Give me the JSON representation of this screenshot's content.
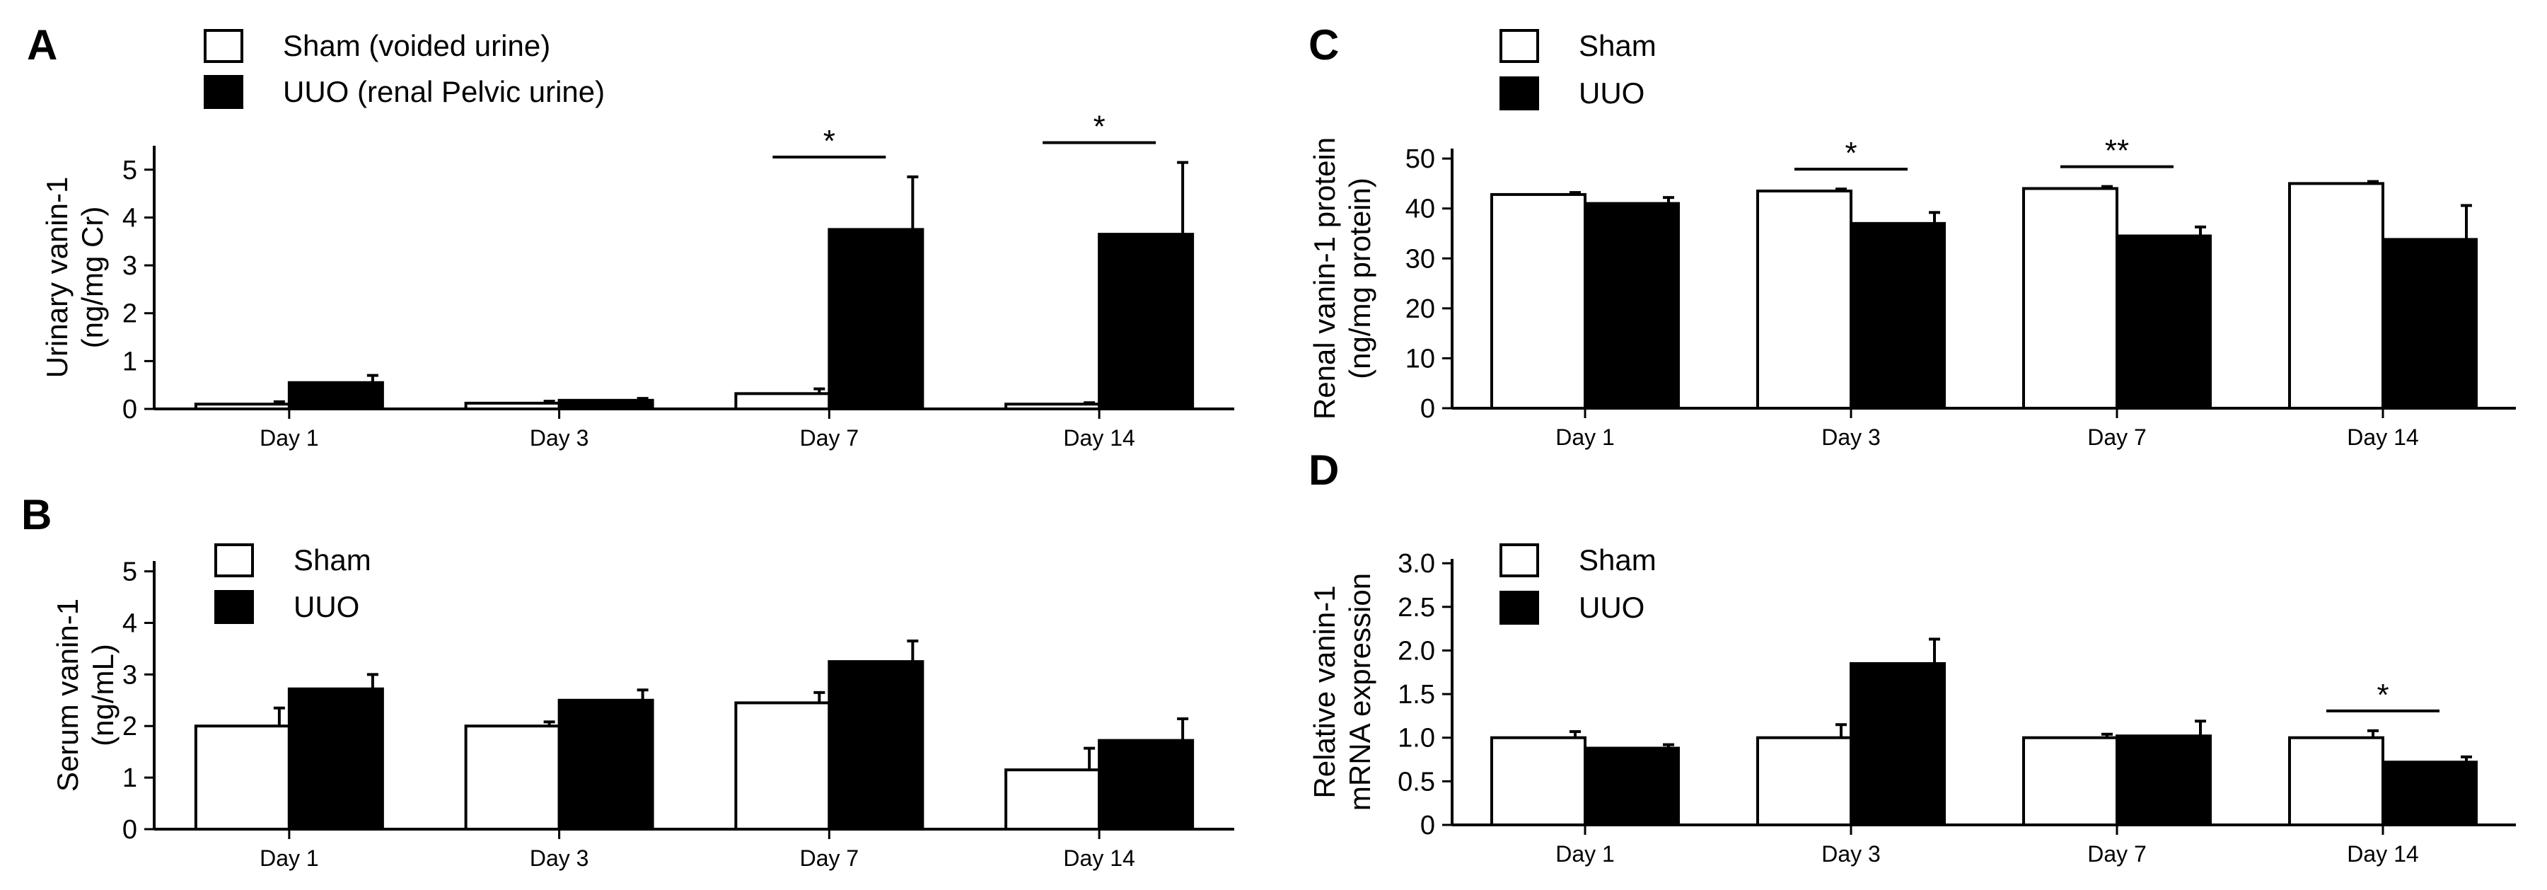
{
  "colors": {
    "sham": "#ffffff",
    "uuo": "#000000",
    "stroke": "#000000"
  },
  "chart_data": [
    {
      "panel": "A",
      "type": "bar",
      "ylabel_lines": [
        "Urinary vanin-1",
        "(ng/mg Cr)"
      ],
      "xlabel": "",
      "categories": [
        "Day 1",
        "Day 3",
        "Day 7",
        "Day 14"
      ],
      "yticks": [
        0,
        1,
        2,
        3,
        4,
        5
      ],
      "ylim": [
        0,
        5.5
      ],
      "legend": [
        "Sham (voided urine)",
        "UUO (renal Pelvic urine)"
      ],
      "series": [
        {
          "name": "Sham (voided urine)",
          "values": [
            0.1,
            0.12,
            0.32,
            0.1
          ],
          "errors": [
            0.05,
            0.04,
            0.1,
            0.03
          ]
        },
        {
          "name": "UUO (renal Pelvic urine)",
          "values": [
            0.55,
            0.18,
            3.75,
            3.65
          ],
          "errors": [
            0.15,
            0.04,
            1.1,
            1.5
          ]
        }
      ],
      "significance": [
        {
          "category": "Day 7",
          "label": "*"
        },
        {
          "category": "Day 14",
          "label": "*"
        }
      ]
    },
    {
      "panel": "B",
      "type": "bar",
      "ylabel_lines": [
        "Serum vanin-1",
        "(ng/mL)"
      ],
      "xlabel": "",
      "categories": [
        "Day 1",
        "Day 3",
        "Day 7",
        "Day 14"
      ],
      "yticks": [
        0,
        1,
        2,
        3,
        4,
        5
      ],
      "ylim": [
        0,
        5.2
      ],
      "legend": [
        "Sham",
        "UUO"
      ],
      "series": [
        {
          "name": "Sham",
          "values": [
            2.0,
            2.0,
            2.45,
            1.15
          ],
          "errors": [
            0.35,
            0.08,
            0.2,
            0.42
          ]
        },
        {
          "name": "UUO",
          "values": [
            2.72,
            2.5,
            3.25,
            1.72
          ],
          "errors": [
            0.28,
            0.2,
            0.4,
            0.42
          ]
        }
      ],
      "significance": []
    },
    {
      "panel": "C",
      "type": "bar",
      "ylabel_lines": [
        "Renal vanin-1 protein",
        "(ng/mg protein)"
      ],
      "xlabel": "",
      "categories": [
        "Day 1",
        "Day 3",
        "Day 7",
        "Day 14"
      ],
      "yticks": [
        0,
        10,
        20,
        30,
        40,
        50
      ],
      "ylim": [
        0,
        52
      ],
      "legend": [
        "Sham",
        "UUO"
      ],
      "series": [
        {
          "name": "Sham",
          "values": [
            42.8,
            43.5,
            44.0,
            45.0
          ],
          "errors": [
            0.4,
            0.4,
            0.4,
            0.4
          ]
        },
        {
          "name": "UUO",
          "values": [
            41.0,
            37.0,
            34.5,
            33.8
          ],
          "errors": [
            1.2,
            2.2,
            1.8,
            6.8
          ]
        }
      ],
      "significance": [
        {
          "category": "Day 3",
          "label": "*"
        },
        {
          "category": "Day 7",
          "label": "**"
        }
      ]
    },
    {
      "panel": "D",
      "type": "bar",
      "ylabel_lines": [
        "Relative vanin-1",
        "mRNA expression"
      ],
      "xlabel": "",
      "categories": [
        "Day 1",
        "Day 3",
        "Day 7",
        "Day 14"
      ],
      "yticks": [
        0,
        0.5,
        1.0,
        1.5,
        2.0,
        2.5,
        3.0
      ],
      "ytick_labels": [
        "0",
        "0.5",
        "1.0",
        "1.5",
        "2.0",
        "2.5",
        "3.0"
      ],
      "ylim": [
        0,
        3.05
      ],
      "legend": [
        "Sham",
        "UUO"
      ],
      "series": [
        {
          "name": "Sham",
          "values": [
            1.0,
            1.0,
            1.0,
            1.0
          ],
          "errors": [
            0.07,
            0.15,
            0.04,
            0.08
          ]
        },
        {
          "name": "UUO",
          "values": [
            0.88,
            1.85,
            1.02,
            0.72
          ],
          "errors": [
            0.04,
            0.28,
            0.17,
            0.06
          ]
        }
      ],
      "significance": [
        {
          "category": "Day 14",
          "label": "*"
        }
      ]
    }
  ]
}
